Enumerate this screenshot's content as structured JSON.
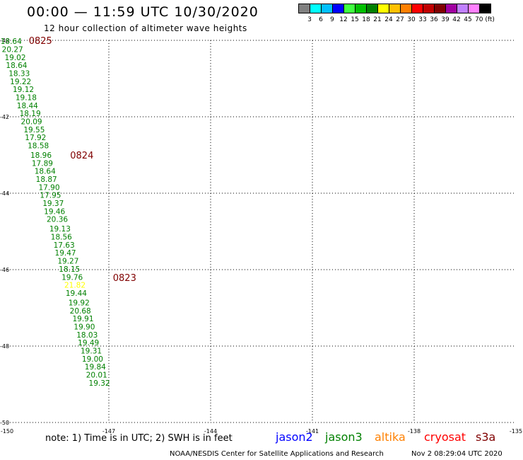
{
  "header": {
    "title": "00:00 — 11:59 UTC 10/30/2020",
    "subtitle": "12 hour collection of altimeter wave heights"
  },
  "colorbar": {
    "colors": [
      "#808080",
      "#00ffff",
      "#00c0ff",
      "#0000ff",
      "#40ff40",
      "#00c000",
      "#008000",
      "#ffff00",
      "#ffc000",
      "#ff8000",
      "#ff0000",
      "#c00000",
      "#800000",
      "#a000a0",
      "#c080ff",
      "#ff80ff",
      "#000000"
    ],
    "labels": [
      "3",
      "6",
      "9",
      "12",
      "15",
      "18",
      "21",
      "24",
      "27",
      "30",
      "33",
      "36",
      "39",
      "42",
      "45",
      "70 (ft)"
    ]
  },
  "chart_data": {
    "type": "scatter",
    "title": "12 hour collection of altimeter wave heights",
    "xlim": [
      -150,
      -135
    ],
    "ylim": [
      -50,
      -40
    ],
    "x_ticks": [
      "-150",
      "-147",
      "-144",
      "-141",
      "-138",
      "-135"
    ],
    "y_ticks": [
      "-40",
      "-42",
      "-44",
      "-46",
      "-48",
      "-50"
    ],
    "points": [
      {
        "lon": -149.88,
        "lat": -40.02,
        "label": "18.64",
        "color": "#008000"
      },
      {
        "lon": -149.84,
        "lat": -40.23,
        "label": "20.27",
        "color": "#008000"
      },
      {
        "lon": -149.76,
        "lat": -40.44,
        "label": "19.02",
        "color": "#008000"
      },
      {
        "lon": -149.72,
        "lat": -40.65,
        "label": "18.64",
        "color": "#008000"
      },
      {
        "lon": -149.64,
        "lat": -40.86,
        "label": "18.33",
        "color": "#008000"
      },
      {
        "lon": -149.6,
        "lat": -41.07,
        "label": "19.22",
        "color": "#008000"
      },
      {
        "lon": -149.52,
        "lat": -41.28,
        "label": "19.12",
        "color": "#008000"
      },
      {
        "lon": -149.44,
        "lat": -41.49,
        "label": "19.18",
        "color": "#008000"
      },
      {
        "lon": -149.4,
        "lat": -41.7,
        "label": "18.44",
        "color": "#008000"
      },
      {
        "lon": -149.32,
        "lat": -41.91,
        "label": "18.19",
        "color": "#008000"
      },
      {
        "lon": -149.28,
        "lat": -42.12,
        "label": "20.09",
        "color": "#008000"
      },
      {
        "lon": -149.2,
        "lat": -42.33,
        "label": "19.55",
        "color": "#008000"
      },
      {
        "lon": -149.16,
        "lat": -42.54,
        "label": "17.92",
        "color": "#008000"
      },
      {
        "lon": -149.08,
        "lat": -42.75,
        "label": "18.58",
        "color": "#008000"
      },
      {
        "lon": -149.0,
        "lat": -43.0,
        "label": "18.96",
        "color": "#008000"
      },
      {
        "lon": -148.96,
        "lat": -43.21,
        "label": "17.89",
        "color": "#008000"
      },
      {
        "lon": -148.88,
        "lat": -43.42,
        "label": "18.64",
        "color": "#008000"
      },
      {
        "lon": -148.84,
        "lat": -43.63,
        "label": "18.87",
        "color": "#008000"
      },
      {
        "lon": -148.76,
        "lat": -43.84,
        "label": "17.90",
        "color": "#008000"
      },
      {
        "lon": -148.72,
        "lat": -44.05,
        "label": "17.95",
        "color": "#008000"
      },
      {
        "lon": -148.64,
        "lat": -44.26,
        "label": "19.37",
        "color": "#008000"
      },
      {
        "lon": -148.6,
        "lat": -44.47,
        "label": "19.46",
        "color": "#008000"
      },
      {
        "lon": -148.52,
        "lat": -44.68,
        "label": "20.36",
        "color": "#008000"
      },
      {
        "lon": -148.44,
        "lat": -44.93,
        "label": "19.13",
        "color": "#008000"
      },
      {
        "lon": -148.4,
        "lat": -45.14,
        "label": "18.56",
        "color": "#008000"
      },
      {
        "lon": -148.32,
        "lat": -45.35,
        "label": "17.63",
        "color": "#008000"
      },
      {
        "lon": -148.28,
        "lat": -45.56,
        "label": "19.47",
        "color": "#008000"
      },
      {
        "lon": -148.2,
        "lat": -45.77,
        "label": "19.27",
        "color": "#008000"
      },
      {
        "lon": -148.16,
        "lat": -45.98,
        "label": "18.15",
        "color": "#008000"
      },
      {
        "lon": -148.08,
        "lat": -46.19,
        "label": "19.76",
        "color": "#008000"
      },
      {
        "lon": -148.0,
        "lat": -46.4,
        "label": "21.82",
        "color": "#ffff00"
      },
      {
        "lon": -147.96,
        "lat": -46.61,
        "label": "19.44",
        "color": "#008000"
      },
      {
        "lon": -147.88,
        "lat": -46.86,
        "label": "19.92",
        "color": "#008000"
      },
      {
        "lon": -147.84,
        "lat": -47.07,
        "label": "20.68",
        "color": "#008000"
      },
      {
        "lon": -147.76,
        "lat": -47.28,
        "label": "19.91",
        "color": "#008000"
      },
      {
        "lon": -147.72,
        "lat": -47.49,
        "label": "19.90",
        "color": "#008000"
      },
      {
        "lon": -147.64,
        "lat": -47.7,
        "label": "18.03",
        "color": "#008000"
      },
      {
        "lon": -147.6,
        "lat": -47.91,
        "label": "19.49",
        "color": "#008000"
      },
      {
        "lon": -147.52,
        "lat": -48.12,
        "label": "19.31",
        "color": "#008000"
      },
      {
        "lon": -147.48,
        "lat": -48.33,
        "label": "19.00",
        "color": "#008000"
      },
      {
        "lon": -147.4,
        "lat": -48.54,
        "label": "19.84",
        "color": "#008000"
      },
      {
        "lon": -147.36,
        "lat": -48.75,
        "label": "20.01",
        "color": "#008000"
      },
      {
        "lon": -147.28,
        "lat": -48.96,
        "label": "19.32",
        "color": "#008000"
      }
    ],
    "date_labels": [
      {
        "lon": -149.36,
        "lat": -40.0,
        "text": "0825",
        "color": "#800000"
      },
      {
        "lon": -148.14,
        "lat": -43.0,
        "text": "0824",
        "color": "#800000"
      },
      {
        "lon": -146.88,
        "lat": -46.2,
        "text": "0823",
        "color": "#800000"
      }
    ]
  },
  "footer": {
    "note": "note:  1) Time is in UTC;  2) SWH is in feet",
    "legend": [
      {
        "name": "jason2",
        "color": "#0000ff"
      },
      {
        "name": "jason3",
        "color": "#008000"
      },
      {
        "name": "altika",
        "color": "#ff8000"
      },
      {
        "name": "cryosat",
        "color": "#ff0000"
      },
      {
        "name": "s3a",
        "color": "#800000"
      }
    ],
    "credit": "NOAA/NESDIS Center for Satellite Applications and Research",
    "timestamp": "Nov  2 08:29:04 UTC 2020"
  }
}
